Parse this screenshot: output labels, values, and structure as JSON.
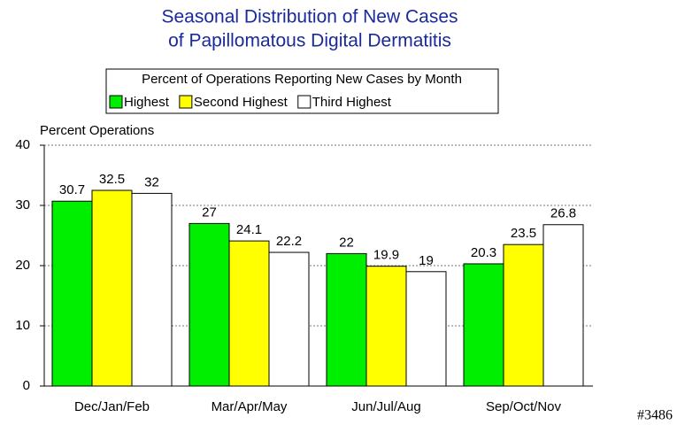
{
  "chart_data": {
    "type": "bar",
    "title": [
      "Seasonal Distribution of New Cases",
      "of Papillomatous Digital Dermatitis"
    ],
    "legend_title": "Percent of Operations Reporting New Cases by Month",
    "y_label": "Percent Operations",
    "annotation": "#3486",
    "categories": [
      "Dec/Jan/Feb",
      "Mar/Apr/May",
      "Jun/Jul/Aug",
      "Sep/Oct/Nov"
    ],
    "series": [
      {
        "name": "Highest",
        "color": "#00ee00",
        "values": [
          30.7,
          27,
          22,
          20.3
        ]
      },
      {
        "name": "Second Highest",
        "color": "#ffff00",
        "values": [
          32.5,
          24.1,
          19.9,
          23.5
        ]
      },
      {
        "name": "Third Highest",
        "color": "#ffffff",
        "values": [
          32,
          22.2,
          19,
          26.8
        ]
      }
    ],
    "ylim": [
      0,
      40
    ],
    "yticks": [
      0,
      10,
      20,
      30,
      40
    ],
    "grid": true
  }
}
